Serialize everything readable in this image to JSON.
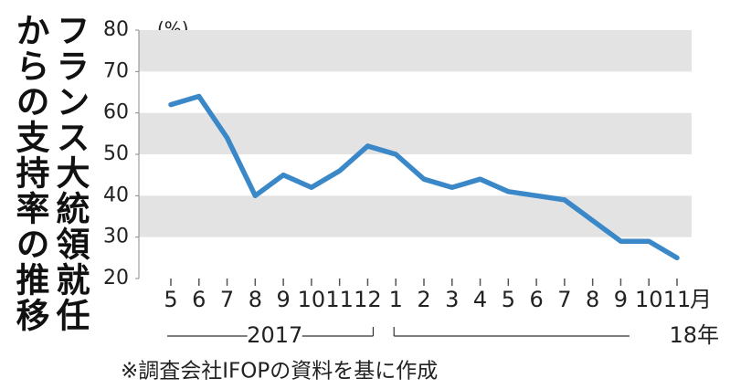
{
  "chart_data": {
    "type": "line",
    "title": "フランス大統領就任からの支持率の推移",
    "y_unit": "(%)",
    "x_unit": "月",
    "categories": [
      "5",
      "6",
      "7",
      "8",
      "9",
      "10",
      "11",
      "12",
      "1",
      "2",
      "3",
      "4",
      "5",
      "6",
      "7",
      "8",
      "9",
      "10",
      "11"
    ],
    "series": [
      {
        "name": "支持率",
        "color": "#3b88c9",
        "values": [
          62,
          64,
          54,
          40,
          45,
          42,
          46,
          52,
          50,
          44,
          42,
          44,
          41,
          40,
          39,
          34,
          29,
          29,
          25
        ]
      }
    ],
    "year_labels": [
      "2017",
      "18年"
    ],
    "ylim": [
      20,
      80
    ],
    "yticks": [
      20,
      30,
      40,
      50,
      60,
      70,
      80
    ],
    "grid": "bands",
    "band_color": "#e3e3e3",
    "source": "※調査会社IFOPの資料を基に作成"
  }
}
